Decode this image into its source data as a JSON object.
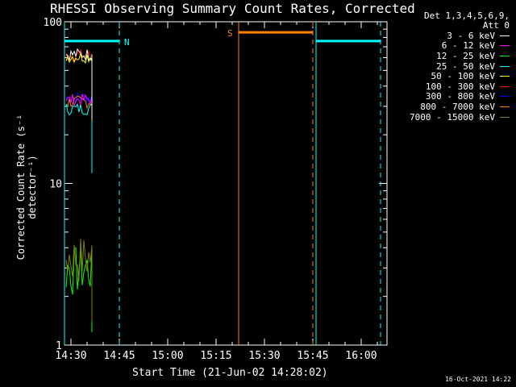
{
  "chart_data": {
    "type": "line",
    "title": "RHESSI Observing Summary Count Rates, Corrected",
    "xlabel": "Start Time (21-Jun-02 14:28:02)",
    "ylabel": "Corrected Count Rate (s⁻¹ detector⁻¹)",
    "yscale": "log",
    "ylim": [
      1,
      100
    ],
    "y_ticks": [
      "1",
      "10",
      "100"
    ],
    "xlim": [
      "14:28",
      "16:08"
    ],
    "x_ticks": [
      "14:30",
      "14:45",
      "15:00",
      "15:15",
      "15:30",
      "15:45",
      "16:00"
    ],
    "legend_header": [
      "Det 1,3,4,5,6,9,",
      "Att 0"
    ],
    "legend_position": "right",
    "series": [
      {
        "name": "3 - 6 keV",
        "color": "#ffffff",
        "x": [
          "14:28",
          "14:37"
        ],
        "y": [
          63,
          63
        ]
      },
      {
        "name": "6 - 12 keV",
        "color": "#ff00ff",
        "x": [
          "14:28",
          "14:37"
        ],
        "y": [
          33,
          33
        ]
      },
      {
        "name": "12 - 25 keV",
        "color": "#00ff00",
        "x": [
          "14:28",
          "14:37"
        ],
        "y": [
          3.0,
          3.0
        ]
      },
      {
        "name": "25 - 50 keV",
        "color": "#00ffff",
        "x": [
          "14:28",
          "14:37"
        ],
        "y": [
          29,
          29
        ]
      },
      {
        "name": "50 - 100 keV",
        "color": "#ffff00",
        "x": [
          "14:28",
          "14:37"
        ],
        "y": [
          61,
          61
        ]
      },
      {
        "name": "100 - 300 keV",
        "color": "#ff0000",
        "x": [
          "14:28",
          "14:37"
        ],
        "y": [
          62,
          62
        ]
      },
      {
        "name": "300 - 800 keV",
        "color": "#0000ff",
        "x": [
          "14:28",
          "14:37"
        ],
        "y": [
          34,
          34
        ]
      },
      {
        "name": "800 - 7000 keV",
        "color": "#ff8000",
        "x": [
          "14:28",
          "14:37"
        ],
        "y": [
          32,
          32
        ]
      },
      {
        "name": "7000 - 15000 keV",
        "color": "#808000",
        "x": [
          "14:28",
          "14:37"
        ],
        "y": [
          3.5,
          3.5
        ]
      }
    ],
    "annotations": [
      {
        "label": "N",
        "color": "#00ffff",
        "y": 76,
        "bars": [
          [
            "14:28",
            "14:45"
          ],
          [
            "15:46",
            "16:06"
          ]
        ]
      },
      {
        "label": "S",
        "color": "#ff8000",
        "y": 86,
        "bars": [
          [
            "15:22",
            "15:45"
          ]
        ]
      }
    ]
  },
  "footer_timestamp": "16-Oct-2021 14:22"
}
